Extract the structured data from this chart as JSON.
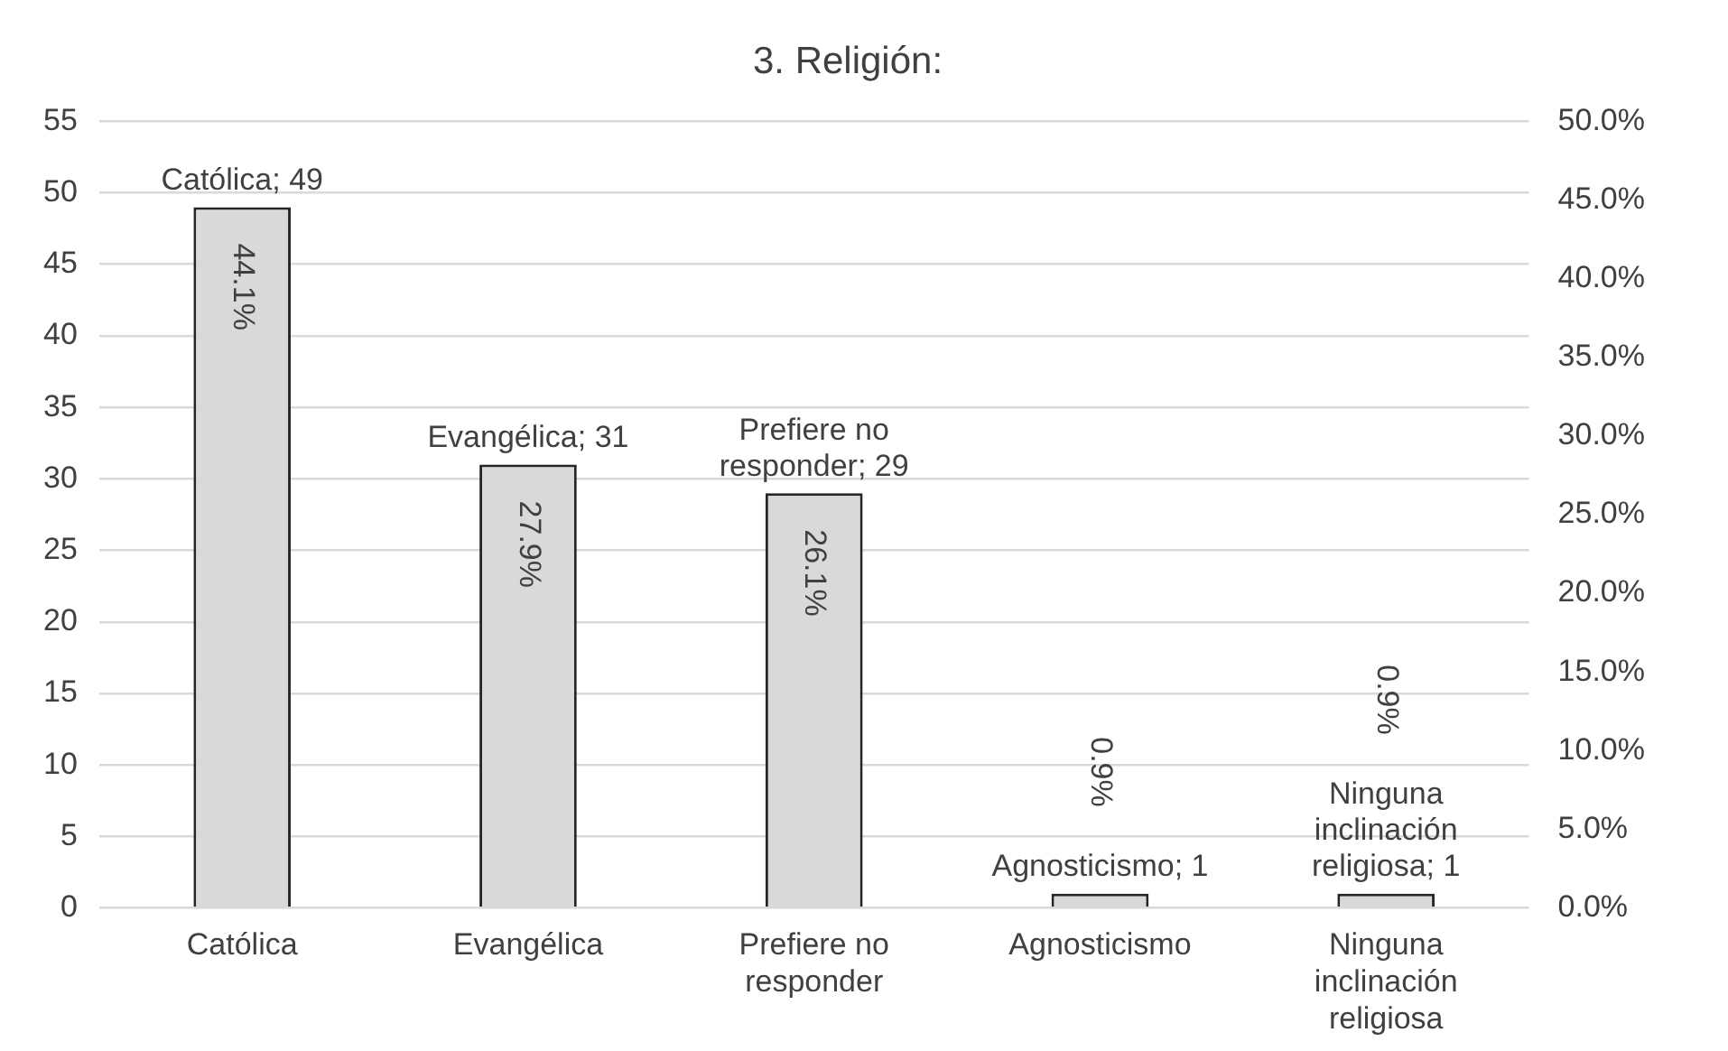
{
  "chart_data": {
    "type": "bar",
    "title": "3. Religión:",
    "categories": [
      "Católica",
      "Evangélica",
      "Prefiere no responder",
      "Agnosticismo",
      "Ninguna inclinación religiosa"
    ],
    "series": [
      {
        "color": "#d9d9d9",
        "values": [
          49,
          31,
          29,
          1,
          1
        ],
        "value_labels": [
          "Católica; 49",
          "Evangélica; 31",
          "Prefiere no responder; 29",
          "Agnosticismo; 1",
          "Ninguna inclinación religiosa; 1"
        ]
      }
    ],
    "ylim": [
      0,
      55
    ],
    "yticks": [
      0,
      5,
      10,
      15,
      20,
      25,
      30,
      35,
      40,
      45,
      50,
      55
    ],
    "y2lim": [
      0,
      50
    ],
    "y2ticks": [
      {
        "value": 0,
        "label": "0.0%"
      },
      {
        "value": 5,
        "label": "5.0%"
      },
      {
        "value": 10,
        "label": "10.0%"
      },
      {
        "value": 15,
        "label": "15.0%"
      },
      {
        "value": 20,
        "label": "20.0%"
      },
      {
        "value": 25,
        "label": "25.0%"
      },
      {
        "value": 30,
        "label": "30.0%"
      },
      {
        "value": 35,
        "label": "35.0%"
      },
      {
        "value": 40,
        "label": "40.0%"
      },
      {
        "value": 45,
        "label": "45.0%"
      },
      {
        "value": 50,
        "label": "50.0%"
      }
    ],
    "grid": "y",
    "legend": false,
    "annotations": [
      "44.1%",
      "27.9%",
      "26.1%",
      "0.9%",
      "0.9%"
    ]
  }
}
